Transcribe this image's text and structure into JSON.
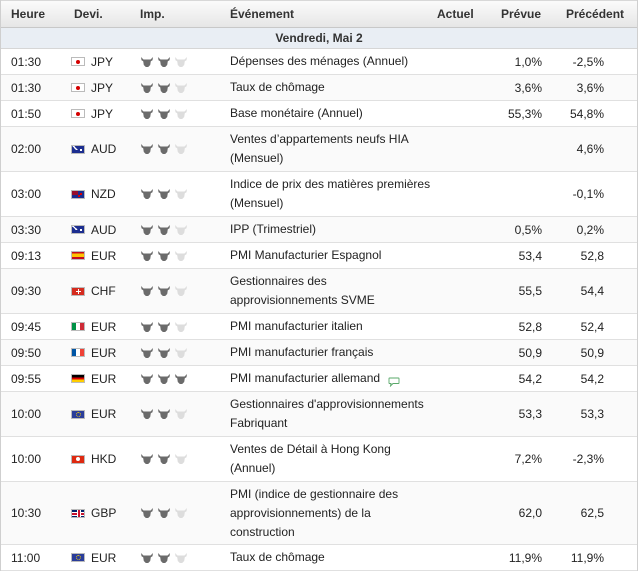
{
  "header": {
    "time": "Heure",
    "currency": "Devi.",
    "importance": "Imp.",
    "event": "Événement",
    "actual": "Actuel",
    "forecast": "Prévue",
    "previous": "Précédent"
  },
  "day_label": "Vendredi, Mai 2",
  "colors": {
    "bull_on": "#6b6b6b",
    "bull_off": "#dddddd",
    "comment": "#5aa86a"
  },
  "rows": [
    {
      "time": "01:30",
      "flag": "jp",
      "currency": "JPY",
      "importance": 2,
      "event": "Dépenses des ménages (Annuel)",
      "actual": "",
      "forecast": "1,0%",
      "previous": "-2,5%",
      "comment": false,
      "h": 25
    },
    {
      "time": "01:30",
      "flag": "jp",
      "currency": "JPY",
      "importance": 2,
      "event": "Taux de chômage",
      "actual": "",
      "forecast": "3,6%",
      "previous": "3,6%",
      "comment": false,
      "h": 25
    },
    {
      "time": "01:50",
      "flag": "jp",
      "currency": "JPY",
      "importance": 2,
      "event": "Base monétaire (Annuel)",
      "actual": "",
      "forecast": "55,3%",
      "previous": "54,8%",
      "comment": false,
      "h": 25
    },
    {
      "time": "02:00",
      "flag": "au",
      "currency": "AUD",
      "importance": 2,
      "event": "Ventes d’appartements neufs HIA (Mensuel)",
      "actual": "",
      "forecast": "",
      "previous": "4,6%",
      "comment": false,
      "h": 44
    },
    {
      "time": "03:00",
      "flag": "nz",
      "currency": "NZD",
      "importance": 2,
      "event": "Indice de prix des matières premières (Mensuel)",
      "actual": "",
      "forecast": "",
      "previous": "-0,1%",
      "comment": false,
      "h": 44
    },
    {
      "time": "03:30",
      "flag": "au",
      "currency": "AUD",
      "importance": 2,
      "event": "IPP (Trimestriel)",
      "actual": "",
      "forecast": "0,5%",
      "previous": "0,2%",
      "comment": false,
      "h": 25
    },
    {
      "time": "09:13",
      "flag": "es",
      "currency": "EUR",
      "importance": 2,
      "event": "PMI Manufacturier Espagnol",
      "actual": "",
      "forecast": "53,4",
      "previous": "52,8",
      "comment": false,
      "h": 25
    },
    {
      "time": "09:30",
      "flag": "ch",
      "currency": "CHF",
      "importance": 2,
      "event": "Gestionnaires des approvisionnements SVME",
      "actual": "",
      "forecast": "55,5",
      "previous": "54,4",
      "comment": false,
      "h": 44
    },
    {
      "time": "09:45",
      "flag": "it",
      "currency": "EUR",
      "importance": 2,
      "event": "PMI manufacturier italien",
      "actual": "",
      "forecast": "52,8",
      "previous": "52,4",
      "comment": false,
      "h": 25
    },
    {
      "time": "09:50",
      "flag": "fr",
      "currency": "EUR",
      "importance": 2,
      "event": "PMI manufacturier français",
      "actual": "",
      "forecast": "50,9",
      "previous": "50,9",
      "comment": false,
      "h": 25
    },
    {
      "time": "09:55",
      "flag": "de",
      "currency": "EUR",
      "importance": 3,
      "event": "PMI manufacturier allemand",
      "actual": "",
      "forecast": "54,2",
      "previous": "54,2",
      "comment": true,
      "h": 25
    },
    {
      "time": "10:00",
      "flag": "eu",
      "currency": "EUR",
      "importance": 2,
      "event": "Gestionnaires d'approvisionnements Fabriquant",
      "actual": "",
      "forecast": "53,3",
      "previous": "53,3",
      "comment": false,
      "h": 44
    },
    {
      "time": "10:00",
      "flag": "hk",
      "currency": "HKD",
      "importance": 2,
      "event": "Ventes de Détail à Hong Kong (Annuel)",
      "actual": "",
      "forecast": "7,2%",
      "previous": "-2,3%",
      "comment": false,
      "h": 44
    },
    {
      "time": "10:30",
      "flag": "gb",
      "currency": "GBP",
      "importance": 2,
      "event": "PMI (indice de gestionnaire des approvisionnements) de la construction",
      "actual": "",
      "forecast": "62,0",
      "previous": "62,5",
      "comment": false,
      "h": 62
    },
    {
      "time": "11:00",
      "flag": "eu",
      "currency": "EUR",
      "importance": 2,
      "event": "Taux de chômage",
      "actual": "",
      "forecast": "11,9%",
      "previous": "11,9%",
      "comment": false,
      "h": 25
    }
  ]
}
